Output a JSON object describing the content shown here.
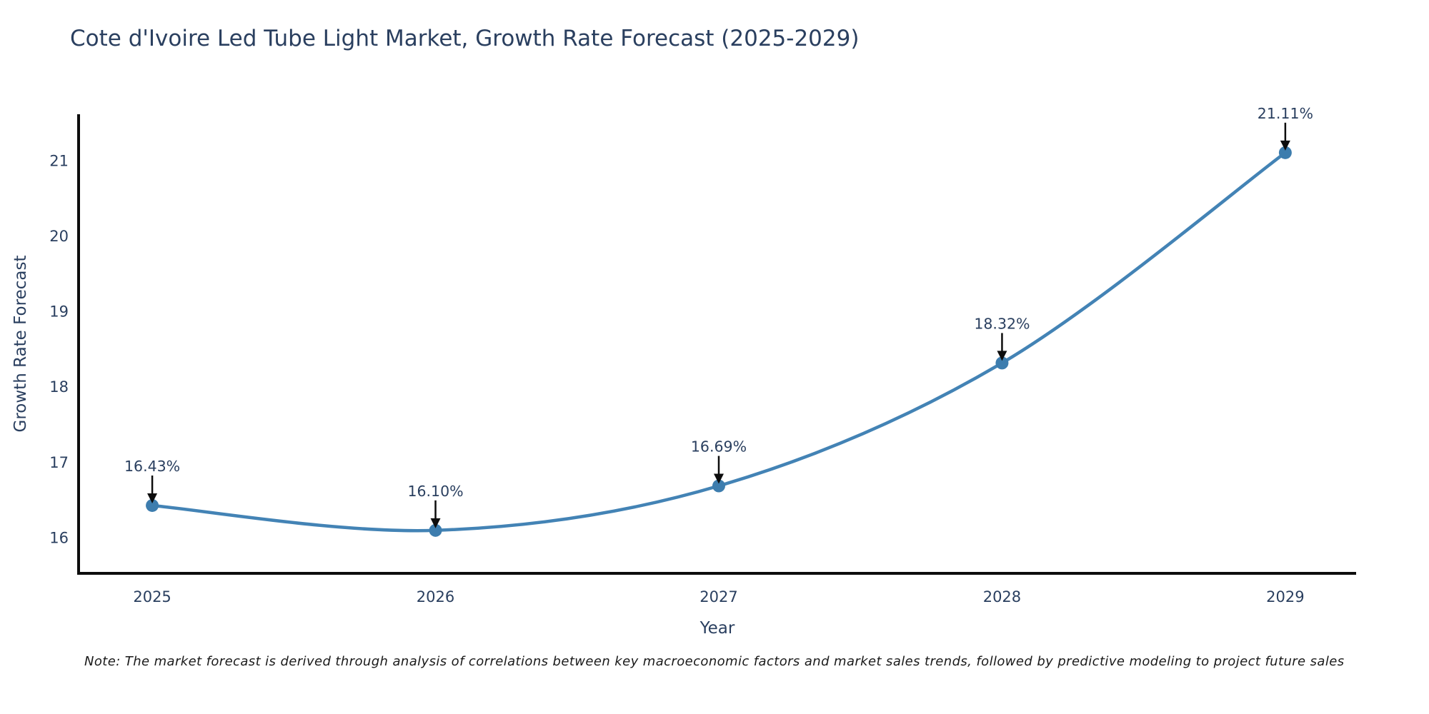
{
  "title": "Cote d'Ivoire Led Tube Light Market, Growth Rate Forecast (2025-2029)",
  "note": "Note: The market forecast is derived through analysis of correlations between key macroeconomic factors and market sales trends, followed by predictive modeling to project future sales",
  "colors": {
    "line": "#4383b5",
    "marker": "#3d7dae",
    "axis": "#0d0d0d",
    "text": "#2a3f5f",
    "arrow": "#0d0d0d",
    "background": "#ffffff"
  },
  "chart_data": {
    "type": "line",
    "title": "Cote d'Ivoire Led Tube Light Market, Growth Rate Forecast (2025-2029)",
    "xlabel": "Year",
    "ylabel": "Growth Rate Forecast",
    "x": [
      2025,
      2026,
      2027,
      2028,
      2029
    ],
    "series": [
      {
        "name": "Growth Rate Forecast",
        "values": [
          16.43,
          16.1,
          16.69,
          18.32,
          21.11
        ]
      }
    ],
    "point_labels": [
      "16.43%",
      "16.10%",
      "16.69%",
      "18.32%",
      "21.11%"
    ],
    "xticks": [
      "2025",
      "2026",
      "2027",
      "2028",
      "2029"
    ],
    "yticks": [
      16,
      17,
      18,
      19,
      20,
      21
    ],
    "xlim": [
      2024.74,
      2029.25
    ],
    "ylim": [
      15.53,
      21.62
    ],
    "grid": false,
    "legend": "none",
    "line_shape": "spline",
    "marker": "circle",
    "annotations": "value labels with down arrows above each point"
  }
}
